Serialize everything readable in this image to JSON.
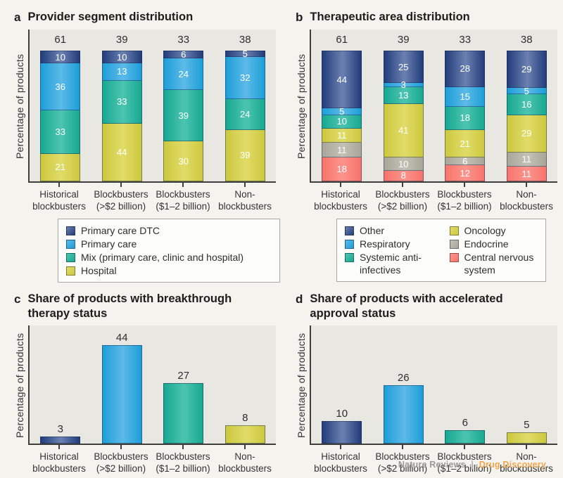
{
  "ylabel": "Percentage of products",
  "categories": [
    "Historical\nblockbusters",
    "Blockbusters\n(>$2 billion)",
    "Blockbusters\n($1–2 billion)",
    "Non-\nblockbusters"
  ],
  "colors": {
    "figure_bg": "#f4f3ee",
    "plot_bg": "#e9e7e1",
    "axis": "#3f3f3c",
    "series": {
      "navy": {
        "dark": "#223d7b",
        "light": "#6c81b2"
      },
      "blue": {
        "dark": "#1d9ed9",
        "light": "#5cbae8"
      },
      "teal": {
        "dark": "#18a892",
        "light": "#4cc5b0"
      },
      "yellow": {
        "dark": "#cdc83f",
        "light": "#e0dc68"
      },
      "gray": {
        "dark": "#a9a699",
        "light": "#c3c0b6"
      },
      "red": {
        "dark": "#f7746b",
        "light": "#fc948c"
      }
    }
  },
  "chart_data": [
    {
      "panel": "a",
      "type": "stacked-bar",
      "title": "Provider segment distribution",
      "ylabel": "Percentage of products",
      "categories": [
        "Historical\nblockbusters",
        "Blockbusters\n(>$2 billion)",
        "Blockbusters\n($1–2 billion)",
        "Non-\nblockbusters"
      ],
      "totals": [
        61,
        39,
        33,
        38
      ],
      "series": [
        {
          "name": "Primary care DTC",
          "color": "navy",
          "values": [
            10,
            10,
            6,
            5
          ]
        },
        {
          "name": "Primary care",
          "color": "blue",
          "values": [
            36,
            13,
            24,
            32
          ]
        },
        {
          "name": "Mix (primary care, clinic and hospital)",
          "color": "teal",
          "values": [
            33,
            33,
            39,
            24
          ]
        },
        {
          "name": "Hospital",
          "color": "yellow",
          "values": [
            21,
            44,
            30,
            39
          ]
        }
      ],
      "legend_position": "below"
    },
    {
      "panel": "b",
      "type": "stacked-bar",
      "title": "Therapeutic area distribution",
      "ylabel": "Percentage of products",
      "categories": [
        "Historical\nblockbusters",
        "Blockbusters\n(>$2 billion)",
        "Blockbusters\n($1–2 billion)",
        "Non-\nblockbusters"
      ],
      "totals": [
        61,
        39,
        33,
        38
      ],
      "series": [
        {
          "name": "Other",
          "color": "navy",
          "values": [
            44,
            25,
            28,
            29
          ]
        },
        {
          "name": "Respiratory",
          "color": "blue",
          "values": [
            5,
            3,
            15,
            5
          ]
        },
        {
          "name": "Systemic anti-infectives",
          "color": "teal",
          "values": [
            10,
            13,
            18,
            16
          ]
        },
        {
          "name": "Oncology",
          "color": "yellow",
          "values": [
            11,
            41,
            21,
            29
          ]
        },
        {
          "name": "Endocrine",
          "color": "gray",
          "values": [
            11,
            10,
            6,
            11
          ]
        },
        {
          "name": "Central nervous system",
          "color": "red",
          "values": [
            18,
            8,
            12,
            11
          ]
        }
      ],
      "legend_position": "below"
    },
    {
      "panel": "c",
      "type": "bar",
      "title": "Share of products with breakthrough therapy status",
      "ylabel": "Percentage of products",
      "categories": [
        "Historical\nblockbusters",
        "Blockbusters\n(>$2 billion)",
        "Blockbusters\n($1–2 billion)",
        "Non-\nblockbusters"
      ],
      "values": [
        3,
        44,
        27,
        8
      ],
      "bar_colors": [
        "navy",
        "blue",
        "teal",
        "yellow"
      ],
      "ylim": [
        0,
        53
      ],
      "grid": false
    },
    {
      "panel": "d",
      "type": "bar",
      "title": "Share of products with accelerated approval status",
      "ylabel": "Percentage of products",
      "categories": [
        "Historical\nblockbusters",
        "Blockbusters\n(>$2 billion)",
        "Blockbusters\n($1–2 billion)",
        "Non-\nblockbusters"
      ],
      "values": [
        10,
        26,
        6,
        5
      ],
      "bar_colors": [
        "navy",
        "blue",
        "teal",
        "yellow"
      ],
      "ylim": [
        0,
        53
      ],
      "grid": false
    }
  ],
  "legends": {
    "a": {
      "items": [
        {
          "label": "Primary care DTC",
          "color": "navy"
        },
        {
          "label": "Primary care",
          "color": "blue"
        },
        {
          "label": "Mix (primary care, clinic and hospital)",
          "color": "teal"
        },
        {
          "label": "Hospital",
          "color": "yellow"
        }
      ]
    },
    "b": {
      "columns": [
        [
          {
            "label": "Other",
            "color": "navy"
          },
          {
            "label": "Respiratory",
            "color": "blue"
          },
          {
            "label": "Systemic anti-infectives",
            "color": "teal",
            "wrap": true
          }
        ],
        [
          {
            "label": "Oncology",
            "color": "yellow"
          },
          {
            "label": "Endocrine",
            "color": "gray"
          },
          {
            "label": "Central nervous system",
            "color": "red",
            "wrap": true
          }
        ]
      ]
    }
  },
  "footer": {
    "journal": "Nature Reviews",
    "separator": "|",
    "title": "Drug Discovery"
  }
}
